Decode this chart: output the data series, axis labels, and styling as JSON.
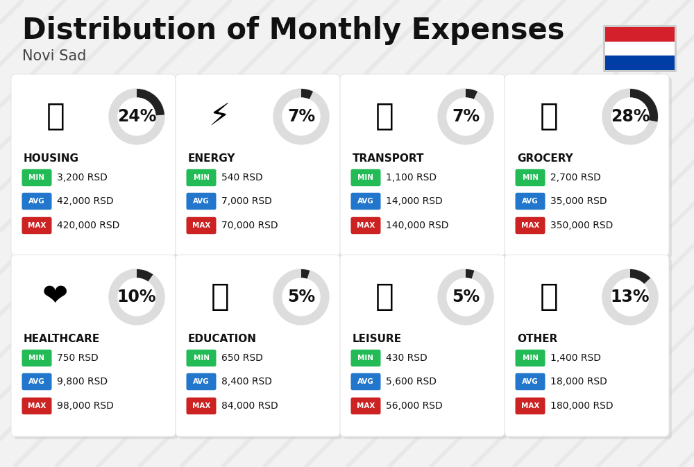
{
  "title": "Distribution of Monthly Expenses",
  "subtitle": "Novi Sad",
  "background_color": "#f2f2f2",
  "card_color": "#ffffff",
  "title_fontsize": 30,
  "subtitle_fontsize": 15,
  "categories": [
    {
      "name": "HOUSING",
      "percent": 24,
      "min": "3,200 RSD",
      "avg": "42,000 RSD",
      "max": "420,000 RSD",
      "row": 0,
      "col": 0,
      "icon_text": "🏗️"
    },
    {
      "name": "ENERGY",
      "percent": 7,
      "min": "540 RSD",
      "avg": "7,000 RSD",
      "max": "70,000 RSD",
      "row": 0,
      "col": 1,
      "icon_text": "⚡️"
    },
    {
      "name": "TRANSPORT",
      "percent": 7,
      "min": "1,100 RSD",
      "avg": "14,000 RSD",
      "max": "140,000 RSD",
      "row": 0,
      "col": 2,
      "icon_text": "🚌"
    },
    {
      "name": "GROCERY",
      "percent": 28,
      "min": "2,700 RSD",
      "avg": "35,000 RSD",
      "max": "350,000 RSD",
      "row": 0,
      "col": 3,
      "icon_text": "🛒"
    },
    {
      "name": "HEALTHCARE",
      "percent": 10,
      "min": "750 RSD",
      "avg": "9,800 RSD",
      "max": "98,000 RSD",
      "row": 1,
      "col": 0,
      "icon_text": "❤️"
    },
    {
      "name": "EDUCATION",
      "percent": 5,
      "min": "650 RSD",
      "avg": "8,400 RSD",
      "max": "84,000 RSD",
      "row": 1,
      "col": 1,
      "icon_text": "🎓"
    },
    {
      "name": "LEISURE",
      "percent": 5,
      "min": "430 RSD",
      "avg": "5,600 RSD",
      "max": "56,000 RSD",
      "row": 1,
      "col": 2,
      "icon_text": "🛍️"
    },
    {
      "name": "OTHER",
      "percent": 13,
      "min": "1,400 RSD",
      "avg": "18,000 RSD",
      "max": "180,000 RSD",
      "row": 1,
      "col": 3,
      "icon_text": "💰"
    }
  ],
  "min_color": "#22bb55",
  "avg_color": "#2277cc",
  "max_color": "#cc2222",
  "donut_fill": "#222222",
  "donut_empty": "#dddddd",
  "text_color": "#111111",
  "name_fontsize": 11,
  "val_fontsize": 10,
  "percent_fontsize": 17,
  "flag_red": "#D4202A",
  "flag_white": "#FFFFFF",
  "flag_blue": "#003DA5"
}
